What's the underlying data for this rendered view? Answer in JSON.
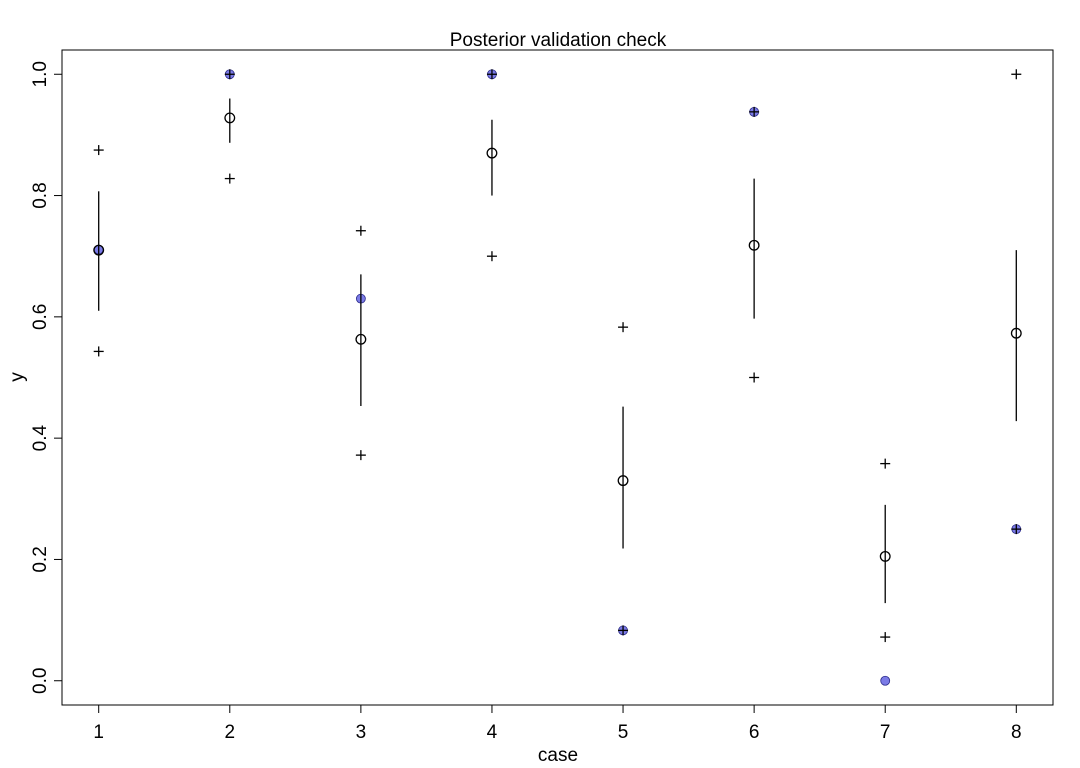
{
  "chart_data": {
    "type": "scatter",
    "title": "Posterior validation check",
    "xlabel": "case",
    "ylabel": "y",
    "xlim": [
      0.72,
      8.28
    ],
    "ylim": [
      -0.04,
      1.04
    ],
    "x_ticks": [
      1,
      2,
      3,
      4,
      5,
      6,
      7,
      8
    ],
    "y_ticks": [
      0.0,
      0.2,
      0.4,
      0.6,
      0.8,
      1.0
    ],
    "y_tick_labels": [
      "0.0",
      "0.2",
      "0.4",
      "0.6",
      "0.8",
      "1.0"
    ],
    "grid": false,
    "legend": "none",
    "colors": {
      "observed": "#7b7be6",
      "observed_edge": "#2b2b8a",
      "marks": "#000000"
    },
    "cases": [
      1,
      2,
      3,
      4,
      5,
      6,
      7,
      8
    ],
    "observed": [
      0.711,
      1.0,
      0.63,
      1.0,
      0.083,
      0.938,
      0.0,
      0.25
    ],
    "mean": [
      0.71,
      0.928,
      0.563,
      0.87,
      0.33,
      0.718,
      0.205,
      0.573
    ],
    "interval_lower": [
      0.61,
      0.887,
      0.453,
      0.8,
      0.218,
      0.597,
      0.128,
      0.428
    ],
    "interval_upper": [
      0.807,
      0.96,
      0.67,
      0.925,
      0.452,
      0.828,
      0.29,
      0.71
    ],
    "predictive_lower": [
      0.543,
      0.828,
      0.372,
      0.7,
      0.083,
      0.5,
      0.072,
      0.25
    ],
    "predictive_upper": [
      0.875,
      1.0,
      0.742,
      1.0,
      0.583,
      0.938,
      0.358,
      1.0
    ]
  }
}
